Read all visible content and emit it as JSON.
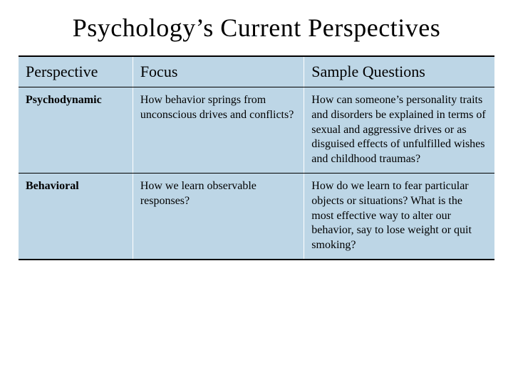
{
  "title": "Psychology’s Current Perspectives",
  "table": {
    "background_color": "#bdd6e6",
    "border_top_color": "#000000",
    "header_fontsize": 22,
    "body_fontsize": 16,
    "columns": [
      {
        "label": "Perspective",
        "width_pct": 24
      },
      {
        "label": "Focus",
        "width_pct": 36
      },
      {
        "label": "Sample Questions",
        "width_pct": 40
      }
    ],
    "rows": [
      {
        "perspective": "Psychodynamic",
        "focus": "How behavior springs from unconscious drives and conflicts?",
        "sample": "How can someone’s personality traits and disorders be explained in terms of sexual and aggressive drives or as disguised effects of unfulfilled wishes and childhood traumas?"
      },
      {
        "perspective": "Behavioral",
        "focus": "How we learn observable responses?",
        "sample": "How do we learn to fear particular objects or situations? What is the most effective way to alter our behavior, say to lose weight or quit smoking?"
      }
    ]
  }
}
